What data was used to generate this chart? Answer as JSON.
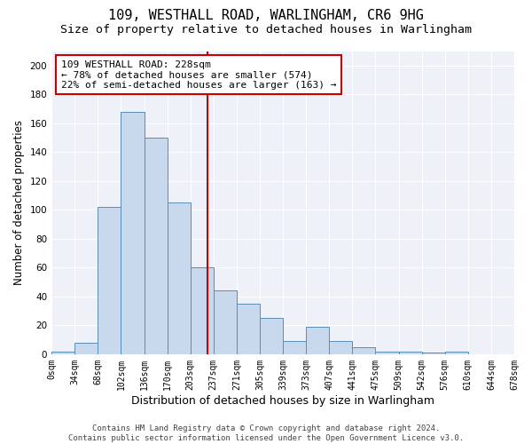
{
  "title1": "109, WESTHALL ROAD, WARLINGHAM, CR6 9HG",
  "title2": "Size of property relative to detached houses in Warlingham",
  "xlabel": "Distribution of detached houses by size in Warlingham",
  "ylabel": "Number of detached properties",
  "bar_values": [
    2,
    8,
    102,
    168,
    150,
    105,
    60,
    44,
    35,
    25,
    9,
    19,
    9,
    5,
    2,
    2,
    1,
    2,
    0,
    0
  ],
  "bin_labels": [
    "0sqm",
    "34sqm",
    "68sqm",
    "102sqm",
    "136sqm",
    "170sqm",
    "203sqm",
    "237sqm",
    "271sqm",
    "305sqm",
    "339sqm",
    "373sqm",
    "407sqm",
    "441sqm",
    "475sqm",
    "509sqm",
    "542sqm",
    "576sqm",
    "610sqm",
    "644sqm",
    "678sqm"
  ],
  "bar_color": "#c9d9ed",
  "bar_edge_color": "#5b8db8",
  "vline_color": "#cc0000",
  "annotation_line1": "109 WESTHALL ROAD: 228sqm",
  "annotation_line2": "← 78% of detached houses are smaller (574)",
  "annotation_line3": "22% of semi-detached houses are larger (163) →",
  "annotation_box_color": "#ffffff",
  "annotation_box_edge": "#cc0000",
  "ylim": [
    0,
    210
  ],
  "yticks": [
    0,
    20,
    40,
    60,
    80,
    100,
    120,
    140,
    160,
    180,
    200
  ],
  "background_color": "#eef2f8",
  "grid_color": "#ffffff",
  "footer_text": "Contains HM Land Registry data © Crown copyright and database right 2024.\nContains public sector information licensed under the Open Government Licence v3.0.",
  "title1_fontsize": 11,
  "title2_fontsize": 9.5,
  "xlabel_fontsize": 9,
  "ylabel_fontsize": 8.5,
  "annotation_fontsize": 8,
  "footer_fontsize": 6.5,
  "tick_fontsize": 7,
  "ytick_fontsize": 7.5,
  "vline_x": 6.735
}
